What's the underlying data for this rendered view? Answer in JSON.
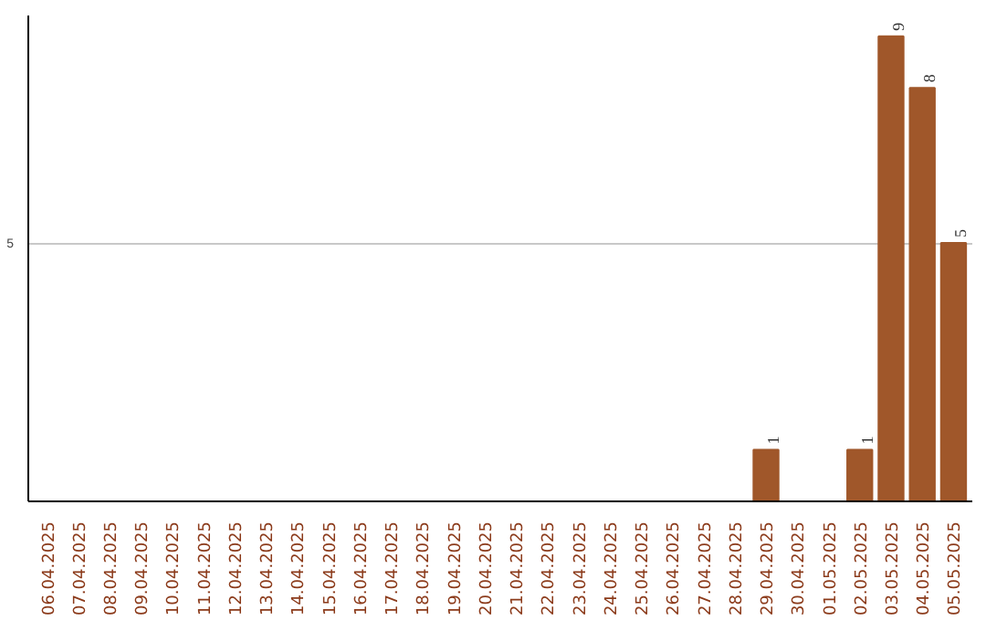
{
  "chart_data": {
    "type": "bar",
    "categories": [
      "06.04.2025",
      "07.04.2025",
      "08.04.2025",
      "09.04.2025",
      "10.04.2025",
      "11.04.2025",
      "12.04.2025",
      "13.04.2025",
      "14.04.2025",
      "15.04.2025",
      "16.04.2025",
      "17.04.2025",
      "18.04.2025",
      "19.04.2025",
      "20.04.2025",
      "21.04.2025",
      "22.04.2025",
      "23.04.2025",
      "24.04.2025",
      "25.04.2025",
      "26.04.2025",
      "27.04.2025",
      "28.04.2025",
      "29.04.2025",
      "30.04.2025",
      "01.05.2025",
      "02.05.2025",
      "03.05.2025",
      "04.05.2025",
      "05.05.2025"
    ],
    "values": [
      null,
      null,
      null,
      null,
      null,
      null,
      null,
      null,
      null,
      null,
      null,
      null,
      null,
      null,
      null,
      null,
      null,
      null,
      null,
      null,
      null,
      null,
      null,
      1,
      null,
      null,
      1,
      9,
      8,
      5
    ],
    "data_labels": true,
    "color": "#a0572a",
    "ylim": [
      0,
      9.4
    ],
    "yticks": [
      5
    ],
    "grid": "y"
  }
}
